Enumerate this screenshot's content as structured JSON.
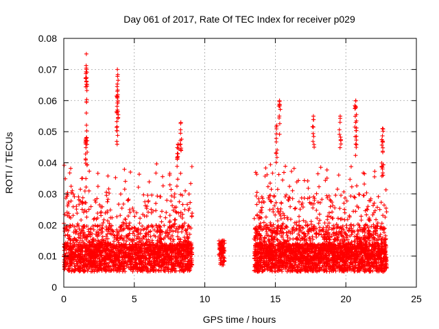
{
  "chart_data": {
    "type": "scatter",
    "title": "Day 061 of 2017, Rate Of TEC Index for receiver p029",
    "xlabel": "GPS time / hours",
    "ylabel": "ROTI / TECUs",
    "xlim": [
      0,
      25
    ],
    "ylim": [
      0,
      0.08
    ],
    "x_ticks": [
      0,
      5,
      10,
      15,
      20,
      25
    ],
    "y_ticks": [
      0,
      0.01,
      0.02,
      0.03,
      0.04,
      0.05,
      0.06,
      0.07,
      0.08
    ],
    "x_tick_labels": [
      "0",
      "5",
      "10",
      "15",
      "20",
      "25"
    ],
    "y_tick_labels": [
      "0",
      "0.01",
      "0.02",
      "0.03",
      "0.04",
      "0.05",
      "0.06",
      "0.07",
      "0.08"
    ],
    "grid": true,
    "marker": "plus",
    "color": "#ff0000",
    "segments": [
      {
        "x_start": 0.0,
        "x_end": 9.1,
        "n": 2200
      },
      {
        "x_start": 11.0,
        "x_end": 11.4,
        "n": 80
      },
      {
        "x_start": 13.5,
        "x_end": 22.9,
        "n": 2600
      }
    ],
    "peaks": [
      {
        "x": 1.6,
        "y": 0.075
      },
      {
        "x": 1.6,
        "y": 0.07
      },
      {
        "x": 1.6,
        "y": 0.056
      },
      {
        "x": 1.6,
        "y": 0.048
      },
      {
        "x": 3.8,
        "y": 0.07
      },
      {
        "x": 3.8,
        "y": 0.063
      },
      {
        "x": 3.8,
        "y": 0.057
      },
      {
        "x": 8.3,
        "y": 0.053
      },
      {
        "x": 8.1,
        "y": 0.046
      },
      {
        "x": 15.3,
        "y": 0.06
      },
      {
        "x": 15.1,
        "y": 0.052
      },
      {
        "x": 17.7,
        "y": 0.055
      },
      {
        "x": 19.6,
        "y": 0.055
      },
      {
        "x": 20.7,
        "y": 0.06
      },
      {
        "x": 20.7,
        "y": 0.053
      },
      {
        "x": 22.6,
        "y": 0.051
      },
      {
        "x": 22.6,
        "y": 0.047
      }
    ]
  }
}
